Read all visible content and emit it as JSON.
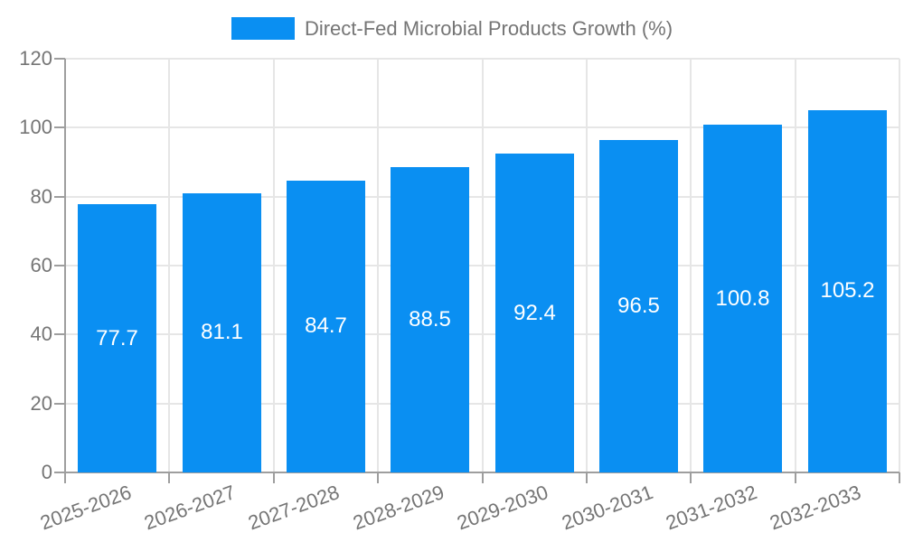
{
  "legend": {
    "label": "Direct-Fed Microbial Products Growth (%)"
  },
  "colors": {
    "bar": "#0A8FF2",
    "axis": "#9E9E9E",
    "grid": "#E6E6E6",
    "text": "#757575",
    "value_label": "#FFFFFF",
    "background": "#FFFFFF"
  },
  "chart_data": {
    "type": "bar",
    "title": "",
    "series_name": "Direct-Fed Microbial Products Growth (%)",
    "categories": [
      "2025-2026",
      "2026-2027",
      "2027-2028",
      "2028-2029",
      "2029-2030",
      "2030-2031",
      "2031-2032",
      "2032-2033"
    ],
    "values": [
      77.7,
      81.1,
      84.7,
      88.5,
      92.4,
      96.5,
      100.8,
      105.2
    ],
    "value_labels_shown": [
      "77.7",
      "81.1",
      "84.7",
      "88.5",
      "92.4",
      "96.5",
      "100.8",
      "105.2"
    ],
    "xlabel": "",
    "ylabel": "",
    "ylim": [
      0,
      120
    ],
    "yticks": [
      0,
      20,
      40,
      60,
      80,
      100,
      120
    ],
    "grid": true,
    "legend_position": "top-center",
    "value_label_position": "inside-center",
    "x_label_rotation_deg": -20,
    "bar_width_fraction": 0.75
  }
}
